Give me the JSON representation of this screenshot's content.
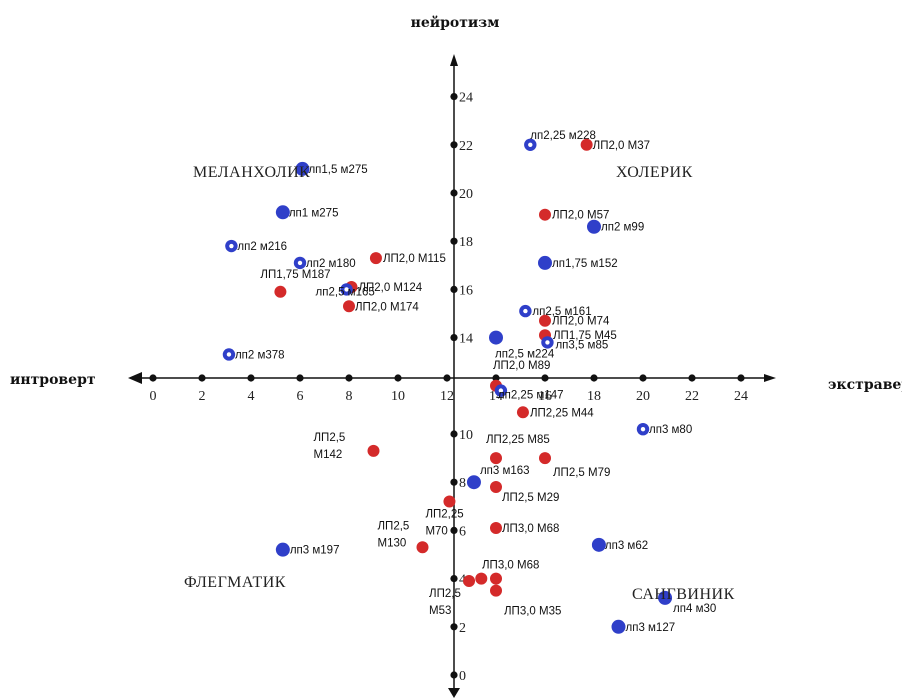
{
  "chart_data": {
    "type": "scatter",
    "x_axis_label": "экстраверт",
    "x_axis_label_negative": "интроверт",
    "y_axis_label": "нейротизм",
    "x_ticks": [
      0,
      2,
      4,
      6,
      8,
      10,
      12,
      14,
      16,
      18,
      20,
      22,
      24
    ],
    "y_ticks_upper": [
      14,
      16,
      18,
      20,
      22,
      24
    ],
    "y_ticks_lower": [
      0,
      2,
      4,
      6,
      8,
      10
    ],
    "quadrants": [
      "МЕЛАНХОЛИК",
      "ХОЛЕРИК",
      "ФЛЕГМАТИК",
      "САНГВИНИК"
    ],
    "colors": {
      "red": "#d42a2a",
      "blue": "#2f3fc9",
      "axis": "#111111"
    },
    "points": [
      {
        "x": 15.4,
        "y": 22.0,
        "color": "blue",
        "style": "ring",
        "label": [
          "лп2,25 м228"
        ]
      },
      {
        "x": 17.7,
        "y": 22.0,
        "color": "red",
        "style": "solid",
        "label": [
          "ЛП2,0  М37"
        ]
      },
      {
        "x": 6.1,
        "y": 21.0,
        "color": "blue",
        "style": "solid",
        "label": [
          "лп1,5 м275"
        ]
      },
      {
        "x": 5.3,
        "y": 19.2,
        "color": "blue",
        "style": "solid",
        "label": [
          "лп1 м275"
        ]
      },
      {
        "x": 16.0,
        "y": 19.1,
        "color": "red",
        "style": "solid",
        "label": [
          "ЛП2,0  М57"
        ]
      },
      {
        "x": 18.0,
        "y": 18.6,
        "color": "blue",
        "style": "solid",
        "label": [
          "лп2 м99"
        ]
      },
      {
        "x": 3.2,
        "y": 17.8,
        "color": "blue",
        "style": "ring",
        "label": [
          "лп2 м216"
        ]
      },
      {
        "x": 6.0,
        "y": 17.1,
        "color": "blue",
        "style": "ring",
        "label": [
          "лп2 м180"
        ]
      },
      {
        "x": 9.1,
        "y": 17.3,
        "color": "red",
        "style": "solid",
        "label": [
          "ЛП2,0  М115"
        ]
      },
      {
        "x": 16.0,
        "y": 17.1,
        "color": "blue",
        "style": "solid",
        "label": [
          "лп1,75 м152"
        ]
      },
      {
        "x": 8.1,
        "y": 16.1,
        "color": "red",
        "style": "solid",
        "label": [
          "ЛП2,0  М124"
        ]
      },
      {
        "x": 7.9,
        "y": 16.0,
        "color": "blue",
        "style": "ring",
        "label": [
          "лп2,5 м165"
        ]
      },
      {
        "x": 5.2,
        "y": 15.9,
        "color": "red",
        "style": "solid",
        "label": [
          "ЛП1,75 М187"
        ]
      },
      {
        "x": 8.0,
        "y": 15.3,
        "color": "red",
        "style": "solid",
        "label": [
          "ЛП2,0  М174"
        ]
      },
      {
        "x": 15.2,
        "y": 15.1,
        "color": "blue",
        "style": "ring",
        "label": [
          "лп2,5 м161"
        ]
      },
      {
        "x": 16.0,
        "y": 14.7,
        "color": "red",
        "style": "solid",
        "label": [
          "ЛП2,0  М74"
        ]
      },
      {
        "x": 16.0,
        "y": 14.1,
        "color": "red",
        "style": "solid",
        "label": [
          "ЛП1,75  М45"
        ]
      },
      {
        "x": 14.0,
        "y": 14.0,
        "color": "blue",
        "style": "solid",
        "label": [
          "лп2,5 м224"
        ]
      },
      {
        "x": 16.1,
        "y": 13.8,
        "color": "blue",
        "style": "ring",
        "label": [
          "лп3,5 м85"
        ]
      },
      {
        "x": 3.1,
        "y": 13.3,
        "color": "blue",
        "style": "ring",
        "label": [
          "лп2 м378"
        ]
      },
      {
        "x": 14.0,
        "y": 12.0,
        "color": "red",
        "style": "solid",
        "label": [
          "ЛП2,0  М89"
        ]
      },
      {
        "x": 14.2,
        "y": 11.8,
        "color": "blue",
        "style": "ring",
        "label": [
          "лп2,25 м147"
        ]
      },
      {
        "x": 15.1,
        "y": 10.9,
        "color": "red",
        "style": "solid",
        "label": [
          "ЛП2,25  М44"
        ]
      },
      {
        "x": 20.0,
        "y": 10.2,
        "color": "blue",
        "style": "ring",
        "label": [
          "лп3 м80"
        ]
      },
      {
        "x": 9.0,
        "y": 9.3,
        "color": "red",
        "style": "solid",
        "label": [
          "ЛП2,5",
          "М142"
        ]
      },
      {
        "x": 14.0,
        "y": 9.0,
        "color": "red",
        "style": "solid",
        "label": [
          "ЛП2,25  М85"
        ]
      },
      {
        "x": 16.0,
        "y": 9.0,
        "color": "red",
        "style": "solid",
        "label": [
          "ЛП2,5  М79"
        ]
      },
      {
        "x": 13.1,
        "y": 8.0,
        "color": "blue",
        "style": "solid",
        "label": [
          "лп3 м163"
        ]
      },
      {
        "x": 14.0,
        "y": 7.8,
        "color": "red",
        "style": "solid",
        "label": [
          "ЛП2,5  М29"
        ]
      },
      {
        "x": 12.1,
        "y": 7.2,
        "color": "red",
        "style": "solid",
        "label": [
          "ЛП2,25",
          "М70"
        ]
      },
      {
        "x": 14.0,
        "y": 6.1,
        "color": "red",
        "style": "solid",
        "label": [
          "ЛП3,0  М68"
        ]
      },
      {
        "x": 11.0,
        "y": 5.3,
        "color": "red",
        "style": "solid",
        "label": [
          "ЛП2,5",
          "М130"
        ]
      },
      {
        "x": 5.3,
        "y": 5.2,
        "color": "blue",
        "style": "solid",
        "label": [
          "лп3 м197"
        ]
      },
      {
        "x": 18.2,
        "y": 5.4,
        "color": "blue",
        "style": "solid",
        "label": [
          "лп3 м62"
        ]
      },
      {
        "x": 14.0,
        "y": 4.0,
        "color": "red",
        "style": "solid",
        "label": [
          "ЛП3,0  М68"
        ]
      },
      {
        "x": 13.4,
        "y": 4.0,
        "color": "red",
        "style": "solid",
        "label": []
      },
      {
        "x": 12.9,
        "y": 3.9,
        "color": "red",
        "style": "solid",
        "label": [
          "ЛП2,5",
          "М53"
        ]
      },
      {
        "x": 14.0,
        "y": 3.5,
        "color": "red",
        "style": "solid",
        "label": [
          "ЛП3,0  М35"
        ]
      },
      {
        "x": 20.9,
        "y": 3.2,
        "color": "blue",
        "style": "solid",
        "label": [
          "лп4 м30"
        ]
      },
      {
        "x": 19.0,
        "y": 2.0,
        "color": "blue",
        "style": "solid",
        "label": [
          "лп3 м127"
        ]
      }
    ]
  }
}
